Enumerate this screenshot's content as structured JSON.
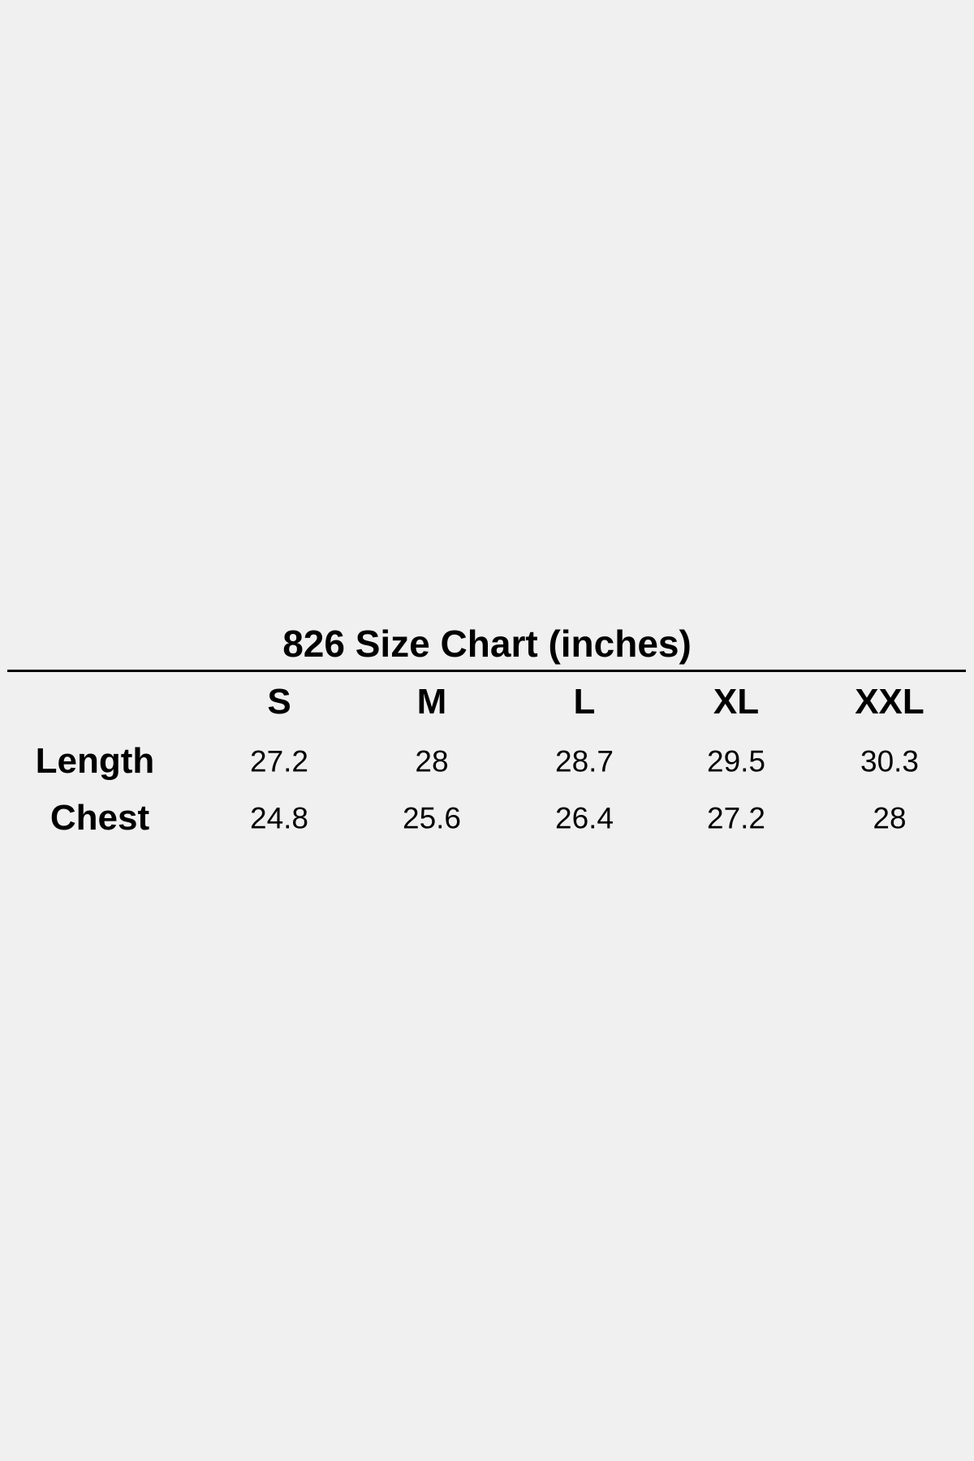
{
  "title": "826 Size Chart (inches)",
  "table": {
    "columns": [
      "S",
      "M",
      "L",
      "XL",
      "XXL"
    ],
    "rows": [
      {
        "label": "Length",
        "values": [
          "27.2",
          "28",
          "28.7",
          "29.5",
          "30.3"
        ]
      },
      {
        "label": "Chest",
        "values": [
          "24.8",
          "25.6",
          "26.4",
          "27.2",
          "28"
        ]
      }
    ]
  }
}
